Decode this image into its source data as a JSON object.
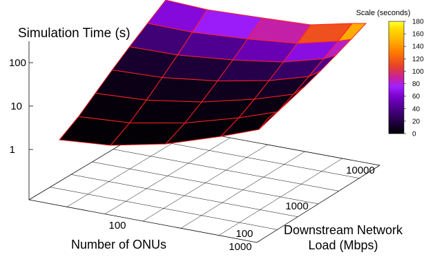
{
  "chart_data": {
    "type": "surface",
    "title": "Simulation Time (s)",
    "z_axis": {
      "scale": "log",
      "ticks": [
        "1",
        "10",
        "100"
      ]
    },
    "x_axis": {
      "label": "Number of ONUs",
      "scale": "log",
      "ticks": [
        "100",
        "1000"
      ]
    },
    "y_axis": {
      "label_lines": [
        "Downstream Network",
        "Load (Mbps)"
      ],
      "scale": "log",
      "ticks": [
        "100",
        "1000",
        "10000"
      ]
    },
    "colorbar": {
      "title": "Scale (seconds)",
      "range": [
        0,
        180
      ],
      "ticks": [
        "0",
        "20",
        "40",
        "60",
        "80",
        "100",
        "120",
        "140",
        "160",
        "180"
      ],
      "palette": [
        "#000000",
        "#1a0033",
        "#4a0088",
        "#7a00cc",
        "#a020ff",
        "#c8209a",
        "#e8402a",
        "#ff7800",
        "#ffb400",
        "#ffe000",
        "#ffff40"
      ]
    },
    "grid": "6x7",
    "mesh_line_color": "#ff2020",
    "surface_values_seconds": [
      [
        1.5,
        1.5,
        1.6,
        1.8,
        2,
        2.3
      ],
      [
        2.6,
        2.7,
        3,
        3.4,
        4,
        4.8
      ],
      [
        5,
        5.5,
        6.3,
        7.5,
        9,
        11
      ],
      [
        10,
        11,
        13,
        16,
        20,
        26
      ],
      [
        20,
        23,
        28,
        35,
        45,
        60
      ],
      [
        40,
        46,
        56,
        72,
        95,
        130
      ],
      [
        70,
        80,
        98,
        125,
        160,
        180
      ]
    ]
  }
}
